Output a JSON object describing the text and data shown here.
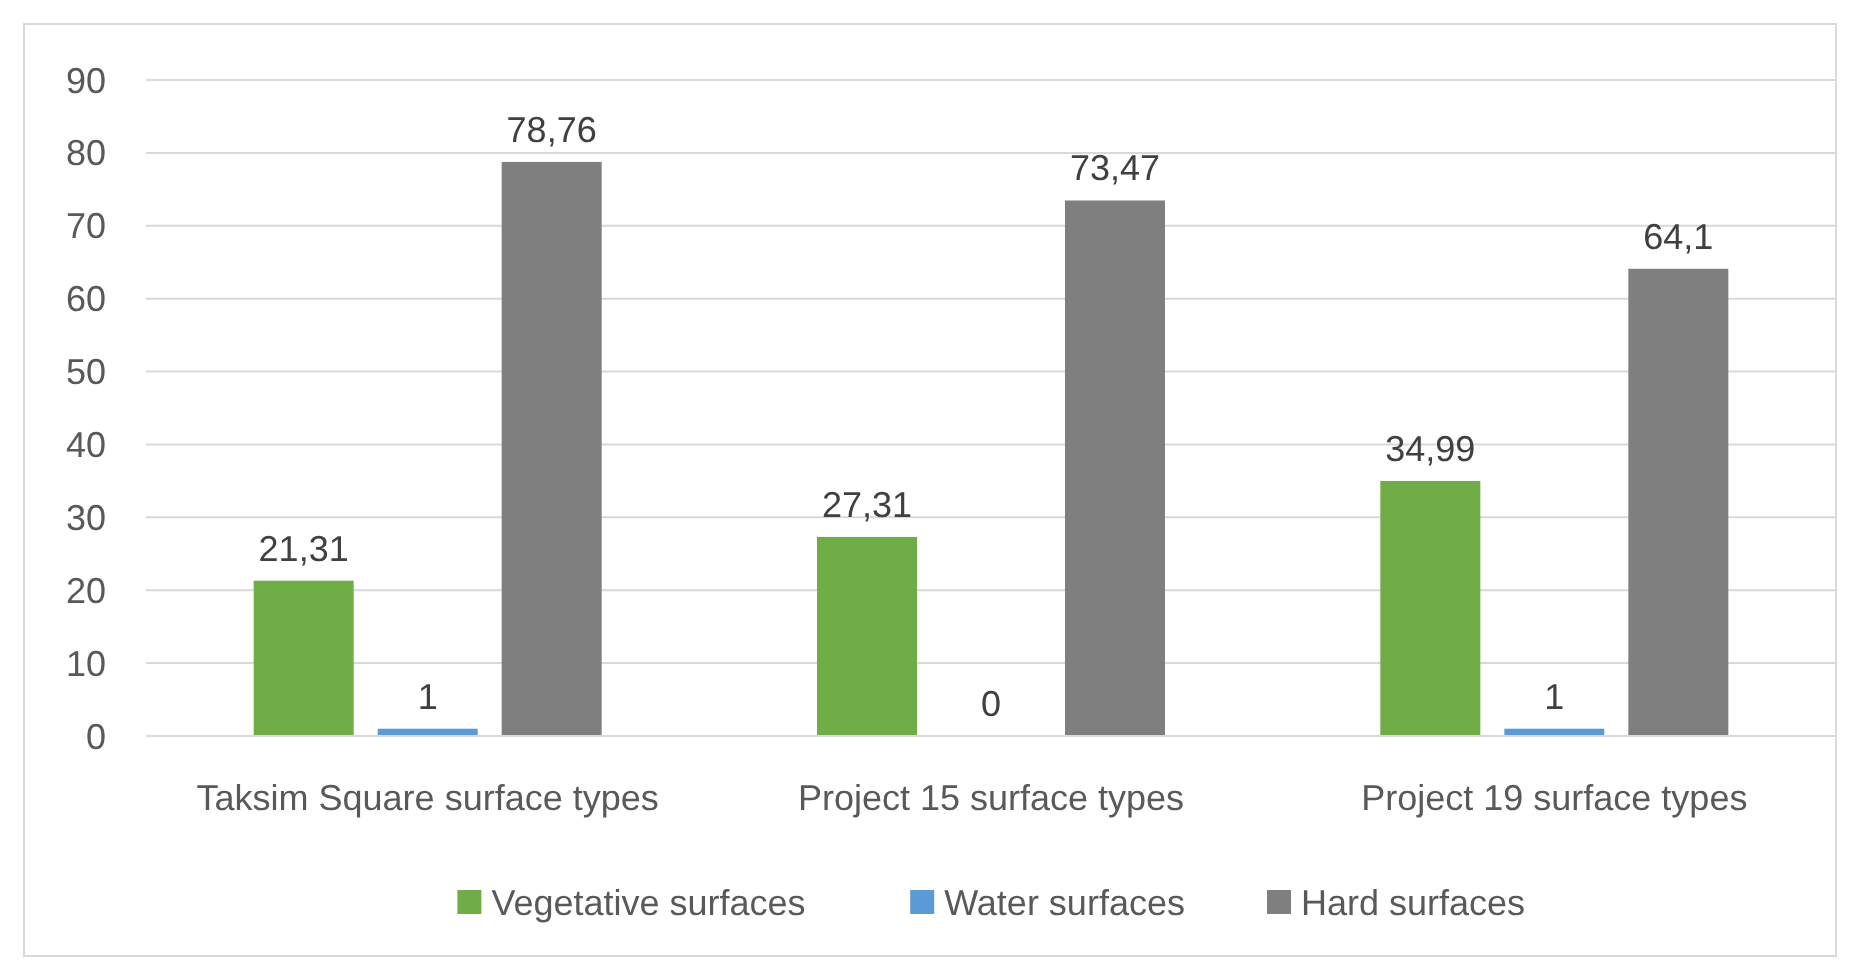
{
  "chart_data": {
    "type": "bar",
    "categories": [
      "Taksim Square surface types",
      "Project 15 surface types",
      "Project 19 surface types"
    ],
    "series": [
      {
        "name": "Vegetative surfaces",
        "color": "#70ad47",
        "values": [
          21.31,
          27.31,
          34.99
        ],
        "value_labels": [
          "21,31",
          "27,31",
          "34,99"
        ]
      },
      {
        "name": "Water surfaces",
        "color": "#5b9bd5",
        "values": [
          1,
          0,
          1
        ],
        "value_labels": [
          "1",
          "0",
          "1"
        ]
      },
      {
        "name": "Hard surfaces",
        "color": "#7f7f7f",
        "values": [
          78.76,
          73.47,
          64.1
        ],
        "value_labels": [
          "78,76",
          "73,47",
          "64,1"
        ]
      }
    ],
    "ylim": [
      0,
      90
    ],
    "yticks": [
      0,
      10,
      20,
      30,
      40,
      50,
      60,
      70,
      80,
      90
    ],
    "grid": "y",
    "legend": "bottom"
  }
}
